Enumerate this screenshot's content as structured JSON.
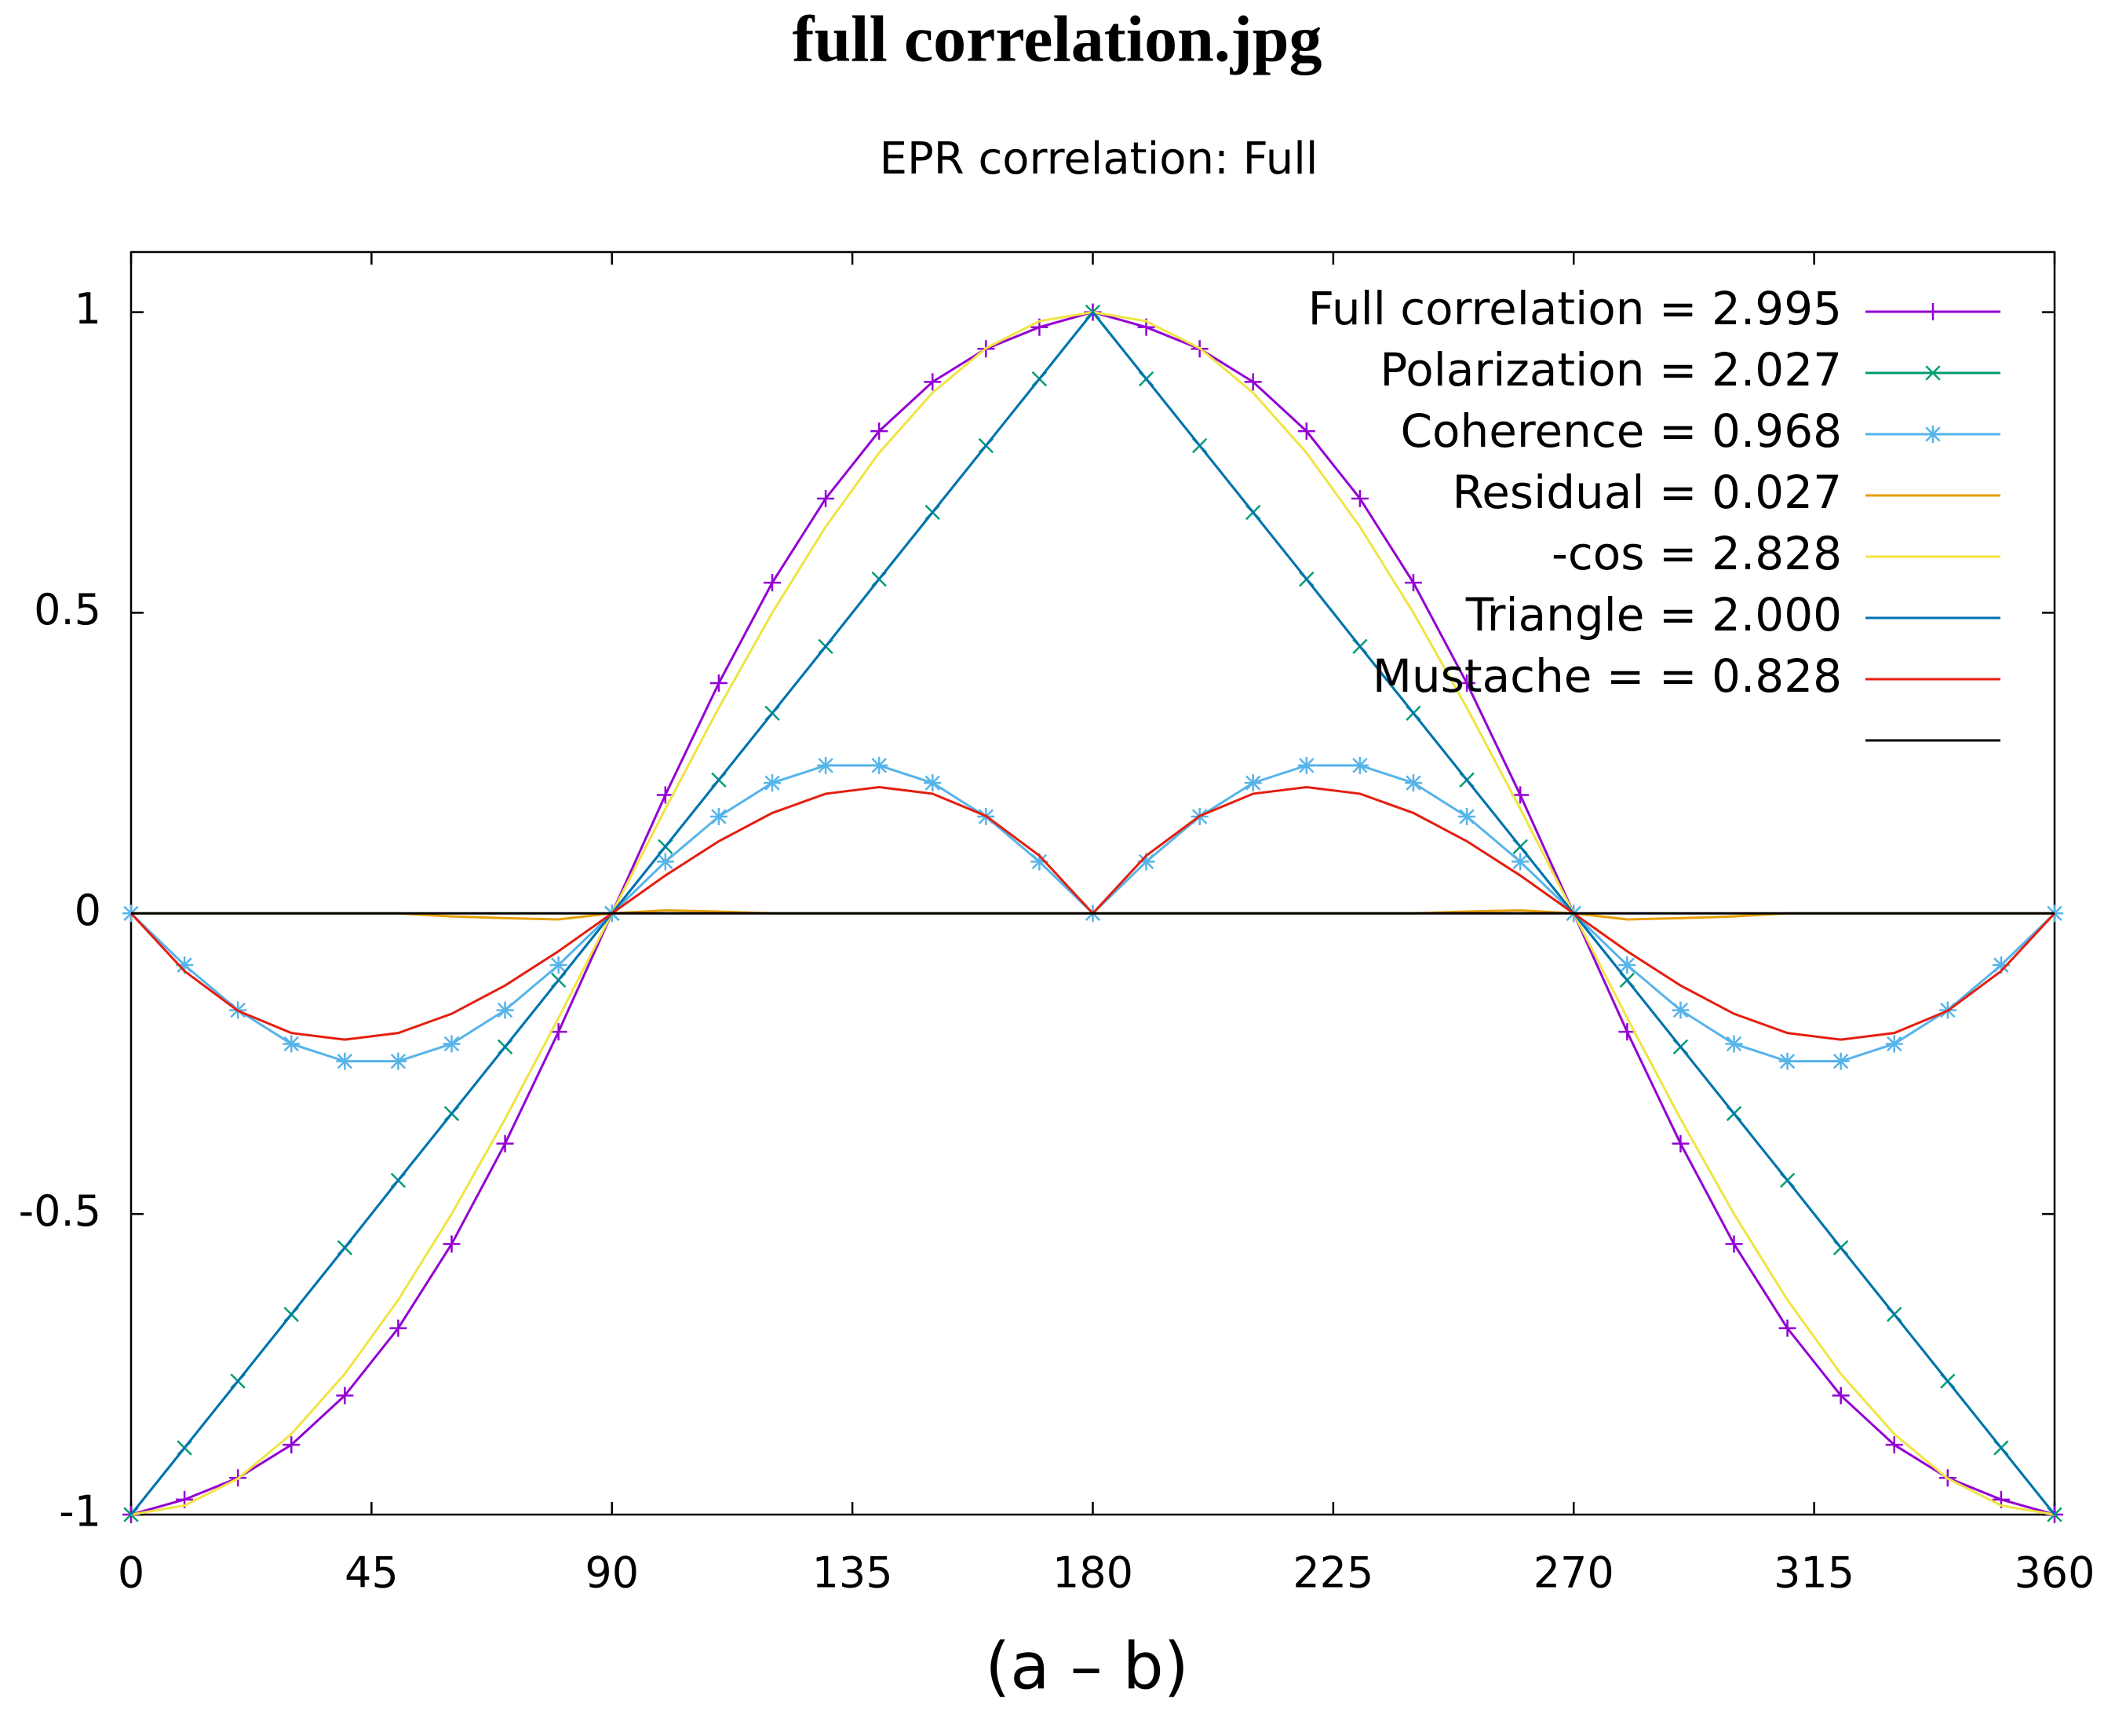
{
  "chart_data": {
    "type": "line",
    "title": "full correlation.jpg",
    "subtitle": "EPR correlation: Full",
    "x_label": "(a – b)",
    "x": [
      0,
      10,
      20,
      30,
      40,
      50,
      60,
      70,
      80,
      90,
      100,
      110,
      120,
      130,
      140,
      150,
      160,
      170,
      180,
      190,
      200,
      210,
      220,
      230,
      240,
      250,
      260,
      270,
      280,
      290,
      300,
      310,
      320,
      330,
      340,
      350,
      360
    ],
    "xlim": [
      0,
      360
    ],
    "xticks": [
      0,
      45,
      90,
      135,
      180,
      225,
      270,
      315,
      360
    ],
    "ylim": [
      -1,
      1.1
    ],
    "yticks": [
      -1,
      -0.5,
      0,
      0.5,
      1
    ],
    "grid": false,
    "legend": "top-right",
    "series": [
      {
        "name": "Full correlation = 2.995",
        "color": "#9400d3",
        "marker": "plus",
        "values": [
          -1,
          -0.975,
          -0.939,
          -0.884,
          -0.802,
          -0.69,
          -0.55,
          -0.383,
          -0.197,
          0,
          0.197,
          0.383,
          0.55,
          0.69,
          0.802,
          0.884,
          0.939,
          0.975,
          1,
          0.975,
          0.939,
          0.884,
          0.802,
          0.69,
          0.55,
          0.383,
          0.197,
          0,
          -0.197,
          -0.383,
          -0.55,
          -0.69,
          -0.802,
          -0.884,
          -0.939,
          -0.975,
          -1
        ]
      },
      {
        "name": "Polarization = 2.027",
        "color": "#009e73",
        "marker": "cross",
        "values": [
          -1,
          -0.889,
          -0.778,
          -0.667,
          -0.556,
          -0.444,
          -0.333,
          -0.222,
          -0.111,
          0,
          0.111,
          0.222,
          0.333,
          0.444,
          0.556,
          0.667,
          0.778,
          0.889,
          1,
          0.889,
          0.778,
          0.667,
          0.556,
          0.444,
          0.333,
          0.222,
          0.111,
          0,
          -0.111,
          -0.222,
          -0.333,
          -0.444,
          -0.556,
          -0.667,
          -0.778,
          -0.889,
          -1
        ]
      },
      {
        "name": "Coherence = 0.968",
        "color": "#56b4e9",
        "marker": "star",
        "values": [
          0,
          -0.086,
          -0.161,
          -0.217,
          -0.246,
          -0.246,
          -0.217,
          -0.161,
          -0.086,
          0,
          0.086,
          0.161,
          0.217,
          0.246,
          0.246,
          0.217,
          0.161,
          0.086,
          0,
          0.086,
          0.161,
          0.217,
          0.246,
          0.246,
          0.217,
          0.161,
          0.086,
          0,
          -0.086,
          -0.161,
          -0.217,
          -0.246,
          -0.246,
          -0.217,
          -0.161,
          -0.086,
          0
        ]
      },
      {
        "name": "Residual = 0.027",
        "color": "#e69f00",
        "values": [
          0,
          0,
          0,
          0,
          0,
          0,
          -0.005,
          -0.008,
          -0.01,
          0,
          0.005,
          0.003,
          0,
          0,
          0,
          0,
          0,
          0,
          0,
          0,
          0,
          0,
          0,
          0,
          0,
          0.003,
          0.005,
          0,
          -0.01,
          -0.008,
          -0.005,
          0,
          0,
          0,
          0,
          0,
          0
        ]
      },
      {
        "name": "-cos = 2.828",
        "color": "#f0e442",
        "values": [
          -1,
          -0.985,
          -0.94,
          -0.866,
          -0.766,
          -0.643,
          -0.5,
          -0.342,
          -0.174,
          0,
          0.174,
          0.342,
          0.5,
          0.643,
          0.766,
          0.866,
          0.94,
          0.985,
          1,
          0.985,
          0.94,
          0.866,
          0.766,
          0.643,
          0.5,
          0.342,
          0.174,
          0,
          -0.174,
          -0.342,
          -0.5,
          -0.643,
          -0.766,
          -0.866,
          -0.94,
          -0.985,
          -1
        ]
      },
      {
        "name": "Triangle = 2.000",
        "color": "#0072b2",
        "values": [
          -1,
          -0.889,
          -0.778,
          -0.667,
          -0.556,
          -0.444,
          -0.333,
          -0.222,
          -0.111,
          0,
          0.111,
          0.222,
          0.333,
          0.444,
          0.556,
          0.667,
          0.778,
          0.889,
          1,
          0.889,
          0.778,
          0.667,
          0.556,
          0.444,
          0.333,
          0.222,
          0.111,
          0,
          -0.111,
          -0.222,
          -0.333,
          -0.444,
          -0.556,
          -0.667,
          -0.778,
          -0.889,
          -1
        ]
      },
      {
        "name": "Mustache = = 0.828",
        "color": "#e51e10",
        "values": [
          0,
          -0.096,
          -0.162,
          -0.199,
          -0.21,
          -0.199,
          -0.167,
          -0.12,
          -0.063,
          0,
          0.063,
          0.12,
          0.167,
          0.199,
          0.21,
          0.199,
          0.162,
          0.096,
          0,
          0.096,
          0.162,
          0.199,
          0.21,
          0.199,
          0.167,
          0.12,
          0.063,
          0,
          -0.063,
          -0.12,
          -0.167,
          -0.199,
          -0.21,
          -0.199,
          -0.162,
          -0.096,
          0
        ]
      },
      {
        "color": "#000000",
        "values": [
          0,
          0,
          0,
          0,
          0,
          0,
          0,
          0,
          0,
          0,
          0,
          0,
          0,
          0,
          0,
          0,
          0,
          0,
          0,
          0,
          0,
          0,
          0,
          0,
          0,
          0,
          0,
          0,
          0,
          0,
          0,
          0,
          0,
          0,
          0,
          0,
          0
        ]
      }
    ]
  }
}
